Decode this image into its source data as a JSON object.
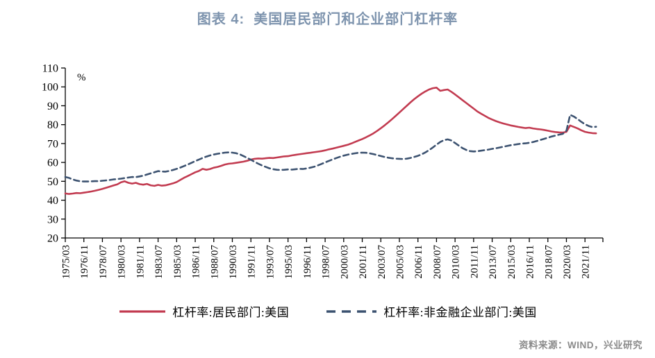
{
  "title": "图表 4:  美国居民部门和企业部门杠杆率",
  "source": "资料来源：WIND，兴业研究",
  "colors": {
    "title": "#7E94AE",
    "household": "#C23B50",
    "corporate": "#3C5270",
    "axis": "#000000",
    "source_text": "#8A8A8A"
  },
  "legend": {
    "items": [
      {
        "id": "household",
        "label": "杠杆率:居民部门:美国",
        "style": "solid"
      },
      {
        "id": "corporate",
        "label": "杠杆率:非金融企业部门:美国",
        "style": "dashed"
      }
    ]
  },
  "chart_data": {
    "type": "line",
    "title": "图表 4:  美国居民部门和企业部门杠杆率",
    "unit_label": "%",
    "grid": false,
    "legend_position": "bottom",
    "x_start": "1975/03",
    "x_interval_months": 4,
    "x_tick_labels": [
      "1975/03",
      "1976/11",
      "1978/07",
      "1980/03",
      "1981/11",
      "1983/07",
      "1985/03",
      "1986/11",
      "1988/07",
      "1990/03",
      "1991/11",
      "1993/07",
      "1995/03",
      "1996/11",
      "1998/07",
      "2000/03",
      "2001/11",
      "2003/07",
      "2005/03",
      "2006/11",
      "2008/07",
      "2010/03",
      "2011/11",
      "2013/07",
      "2015/03",
      "2016/11",
      "2018/07",
      "2020/03",
      "2021/11"
    ],
    "y_axis": {
      "min": 20,
      "max": 110,
      "step": 10,
      "tick_labels": [
        "20",
        "30",
        "40",
        "50",
        "60",
        "70",
        "80",
        "90",
        "100",
        "110"
      ]
    },
    "series": [
      {
        "name": "杠杆率:居民部门:美国",
        "color": "#C23B50",
        "style": "solid",
        "values": [
          43.6,
          43.3,
          43.5,
          43.8,
          43.7,
          44.0,
          44.3,
          44.6,
          45.0,
          45.5,
          46.0,
          46.6,
          47.2,
          47.8,
          48.4,
          49.5,
          50.0,
          49.2,
          48.8,
          49.2,
          48.5,
          48.2,
          48.6,
          47.9,
          47.6,
          48.1,
          47.7,
          47.9,
          48.4,
          48.9,
          49.6,
          50.8,
          51.9,
          52.8,
          53.8,
          54.8,
          55.5,
          56.6,
          56.1,
          56.5,
          57.2,
          57.6,
          58.2,
          58.9,
          59.3,
          59.5,
          59.8,
          60.1,
          60.4,
          60.9,
          61.5,
          61.9,
          62.1,
          62.0,
          62.2,
          62.4,
          62.3,
          62.6,
          62.9,
          63.2,
          63.3,
          63.7,
          64.0,
          64.3,
          64.6,
          64.9,
          65.1,
          65.4,
          65.7,
          66.0,
          66.4,
          66.9,
          67.3,
          67.8,
          68.3,
          68.8,
          69.3,
          70.0,
          70.8,
          71.6,
          72.4,
          73.3,
          74.3,
          75.4,
          76.7,
          78.1,
          79.6,
          81.2,
          82.9,
          84.6,
          86.4,
          88.2,
          90.0,
          91.8,
          93.5,
          95.0,
          96.4,
          97.6,
          98.6,
          99.3,
          99.6,
          97.9,
          98.3,
          98.6,
          97.4,
          96.0,
          94.5,
          93.0,
          91.5,
          90.0,
          88.5,
          87.0,
          85.8,
          84.7,
          83.6,
          82.7,
          81.9,
          81.2,
          80.6,
          80.1,
          79.6,
          79.2,
          78.8,
          78.5,
          78.2,
          78.4,
          78.0,
          77.7,
          77.5,
          77.2,
          76.8,
          76.4,
          76.1,
          75.9,
          75.8,
          76.2,
          79.6,
          78.8,
          78.0,
          77.0,
          76.2,
          75.8,
          75.5,
          75.4
        ]
      },
      {
        "name": "杠杆率:非金融企业部门:美国",
        "color": "#3C5270",
        "style": "dashed",
        "values": [
          52.3,
          51.8,
          51.0,
          50.4,
          50.0,
          49.9,
          49.9,
          50.0,
          50.1,
          50.1,
          50.3,
          50.5,
          50.7,
          51.0,
          51.2,
          51.4,
          51.7,
          52.0,
          52.3,
          52.2,
          52.6,
          53.0,
          53.6,
          54.2,
          54.8,
          55.4,
          55.2,
          55.1,
          55.5,
          56.0,
          56.6,
          57.3,
          58.1,
          58.9,
          59.8,
          60.7,
          61.5,
          62.4,
          63.1,
          63.7,
          64.2,
          64.6,
          64.9,
          65.2,
          65.3,
          65.2,
          64.9,
          64.3,
          63.4,
          62.4,
          61.4,
          60.3,
          59.3,
          58.4,
          57.6,
          56.9,
          56.4,
          56.1,
          56.0,
          56.1,
          56.3,
          56.2,
          56.4,
          56.6,
          56.5,
          56.8,
          57.2,
          57.7,
          58.4,
          59.2,
          60.0,
          60.8,
          61.6,
          62.3,
          63.0,
          63.6,
          64.1,
          64.5,
          64.8,
          65.1,
          65.2,
          65.1,
          64.8,
          64.4,
          63.9,
          63.4,
          62.9,
          62.5,
          62.2,
          62.0,
          61.9,
          61.8,
          62.0,
          62.4,
          62.9,
          63.5,
          64.3,
          65.3,
          66.5,
          67.9,
          69.4,
          70.8,
          71.8,
          72.2,
          71.6,
          70.3,
          68.9,
          67.6,
          66.6,
          66.0,
          65.8,
          65.9,
          66.2,
          66.5,
          66.8,
          67.2,
          67.5,
          67.9,
          68.3,
          68.7,
          69.1,
          69.4,
          69.7,
          70.0,
          70.1,
          70.4,
          70.8,
          71.3,
          71.9,
          72.5,
          73.1,
          73.7,
          74.2,
          74.7,
          75.1,
          76.8,
          85.2,
          84.3,
          83.0,
          81.5,
          80.2,
          79.3,
          78.7,
          78.9
        ]
      }
    ]
  }
}
